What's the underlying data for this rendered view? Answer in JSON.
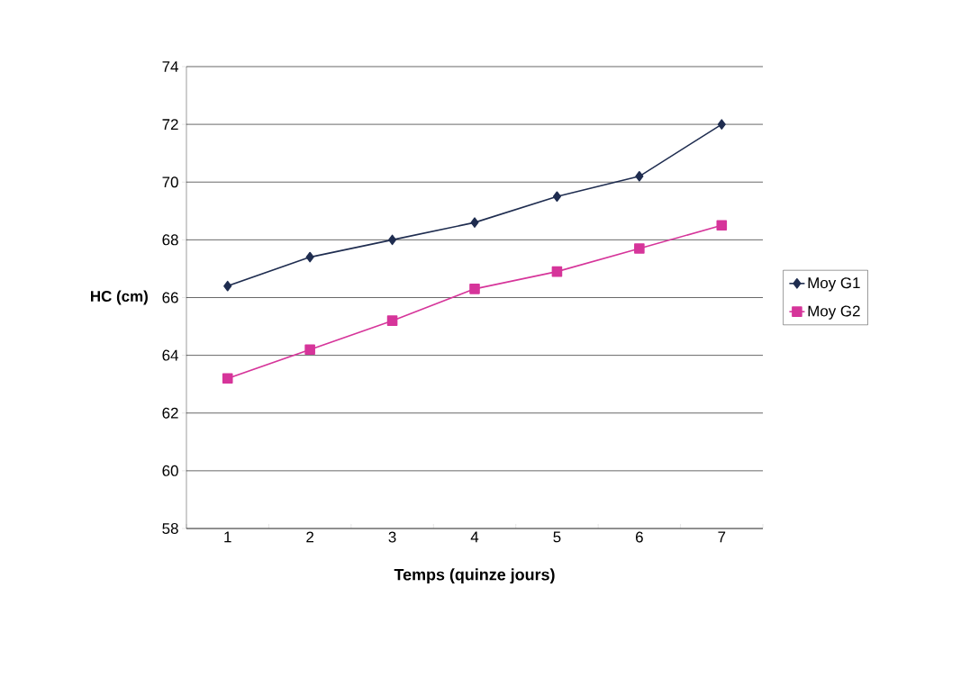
{
  "chart_data": {
    "type": "line",
    "xlabel": "Temps (quinze jours)",
    "ylabel": "HC (cm)",
    "categories": [
      "1",
      "2",
      "3",
      "4",
      "5",
      "6",
      "7"
    ],
    "series": [
      {
        "name": "Moy G1",
        "color": "#1f2d50",
        "marker": "diamond",
        "values": [
          66.4,
          67.4,
          68.0,
          68.6,
          69.5,
          70.2,
          72.0
        ]
      },
      {
        "name": "Moy G2",
        "color": "#d6359a",
        "marker": "square",
        "values": [
          63.2,
          64.2,
          65.2,
          66.3,
          66.9,
          67.7,
          68.5
        ]
      }
    ],
    "ylim": [
      58,
      74
    ],
    "yticks": [
      58,
      60,
      62,
      64,
      66,
      68,
      70,
      72,
      74
    ],
    "grid": "y",
    "legend": "right"
  }
}
